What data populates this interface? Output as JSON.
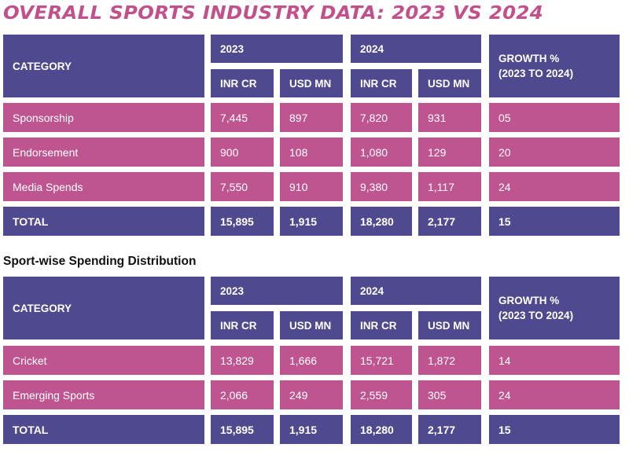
{
  "title": "OVERALL SPORTS INDUSTRY DATA: 2023 VS 2024",
  "subtitle": "Sport-wise Spending Distribution",
  "headers": {
    "category": "CATEGORY",
    "year1": "2023",
    "year2": "2024",
    "inr": "INR CR",
    "usd": "USD MN",
    "growth_line1": "GROWTH %",
    "growth_line2": "(2023 TO 2024)"
  },
  "table1": {
    "rows": [
      {
        "category": "Sponsorship",
        "inr_2023": "7,445",
        "usd_2023": "897",
        "inr_2024": "7,820",
        "usd_2024": "931",
        "growth": "05"
      },
      {
        "category": "Endorsement",
        "inr_2023": "900",
        "usd_2023": "108",
        "inr_2024": "1,080",
        "usd_2024": "129",
        "growth": "20"
      },
      {
        "category": "Media Spends",
        "inr_2023": "7,550",
        "usd_2023": "910",
        "inr_2024": "9,380",
        "usd_2024": "1,117",
        "growth": "24"
      }
    ],
    "total": {
      "category": "TOTAL",
      "inr_2023": "15,895",
      "usd_2023": "1,915",
      "inr_2024": "18,280",
      "usd_2024": "2,177",
      "growth": "15"
    }
  },
  "table2": {
    "rows": [
      {
        "category": "Cricket",
        "inr_2023": "13,829",
        "usd_2023": "1,666",
        "inr_2024": "15,721",
        "usd_2024": "1,872",
        "growth": "14"
      },
      {
        "category": "Emerging Sports",
        "inr_2023": "2,066",
        "usd_2023": "249",
        "inr_2024": "2,559",
        "usd_2024": "305",
        "growth": "24"
      }
    ],
    "total": {
      "category": "TOTAL",
      "inr_2023": "15,895",
      "usd_2023": "1,915",
      "inr_2024": "18,280",
      "usd_2024": "2,177",
      "growth": "15"
    }
  }
}
